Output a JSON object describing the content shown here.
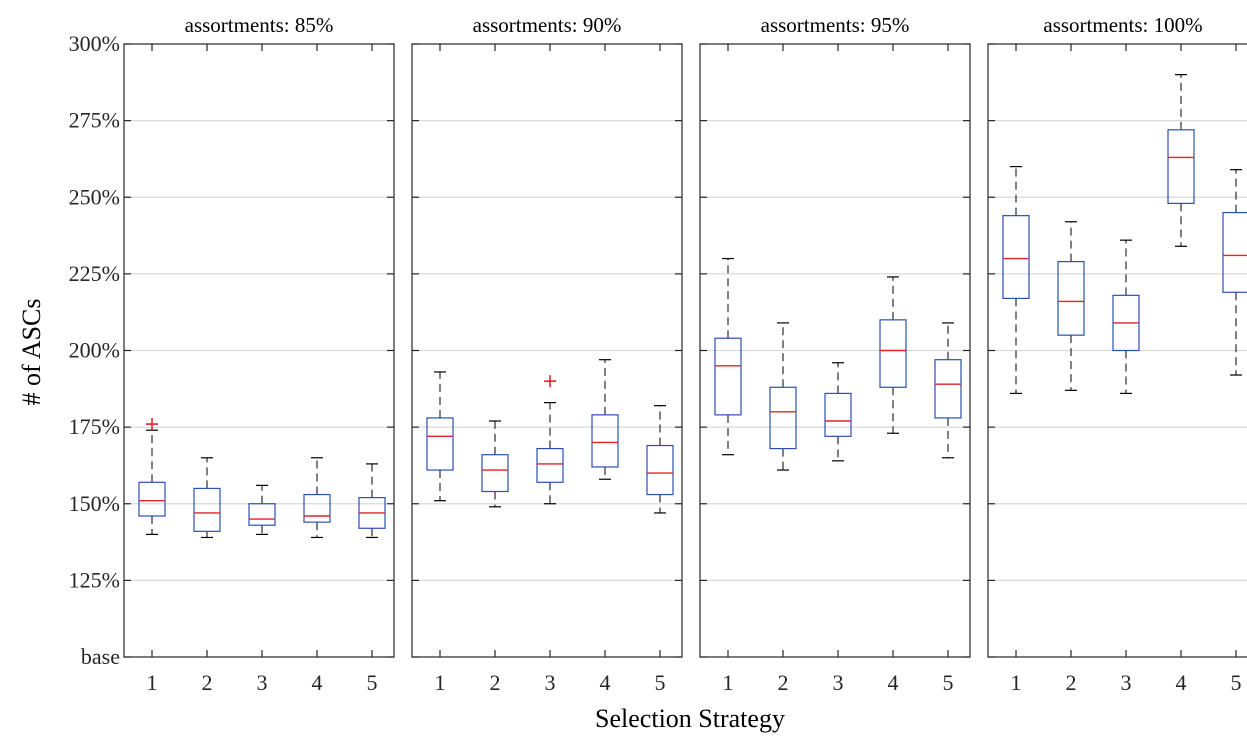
{
  "chart_data": {
    "type": "box",
    "xlabel": "Selection Strategy",
    "ylabel": "# of ASCs",
    "y_ticks": [
      {
        "value": 100,
        "label": "base"
      },
      {
        "value": 125,
        "label": "125%"
      },
      {
        "value": 150,
        "label": "150%"
      },
      {
        "value": 175,
        "label": "175%"
      },
      {
        "value": 200,
        "label": "200%"
      },
      {
        "value": 225,
        "label": "225%"
      },
      {
        "value": 250,
        "label": "250%"
      },
      {
        "value": 275,
        "label": "275%"
      },
      {
        "value": 300,
        "label": "300%"
      }
    ],
    "ylim": [
      100,
      300
    ],
    "grid": "horizontal",
    "colors": {
      "box": "#2a4fb5",
      "median": "#e0242c",
      "whisker": "#000000",
      "grid": "#d9d9d9",
      "outlier": "#e0242c"
    },
    "panels": [
      {
        "title": "assortments: 85%",
        "categories": [
          "1",
          "2",
          "3",
          "4",
          "5"
        ],
        "boxes": [
          {
            "min": 140,
            "q1": 146,
            "median": 151,
            "q3": 157,
            "max": 174,
            "outliers": [
              176
            ]
          },
          {
            "min": 139,
            "q1": 141,
            "median": 147,
            "q3": 155,
            "max": 165,
            "outliers": []
          },
          {
            "min": 140,
            "q1": 143,
            "median": 145,
            "q3": 150,
            "max": 156,
            "outliers": []
          },
          {
            "min": 139,
            "q1": 144,
            "median": 146,
            "q3": 153,
            "max": 165,
            "outliers": []
          },
          {
            "min": 139,
            "q1": 142,
            "median": 147,
            "q3": 152,
            "max": 163,
            "outliers": []
          }
        ]
      },
      {
        "title": "assortments: 90%",
        "categories": [
          "1",
          "2",
          "3",
          "4",
          "5"
        ],
        "boxes": [
          {
            "min": 151,
            "q1": 161,
            "median": 172,
            "q3": 178,
            "max": 193,
            "outliers": []
          },
          {
            "min": 149,
            "q1": 154,
            "median": 161,
            "q3": 166,
            "max": 177,
            "outliers": []
          },
          {
            "min": 150,
            "q1": 157,
            "median": 163,
            "q3": 168,
            "max": 183,
            "outliers": [
              190
            ]
          },
          {
            "min": 158,
            "q1": 162,
            "median": 170,
            "q3": 179,
            "max": 197,
            "outliers": []
          },
          {
            "min": 147,
            "q1": 153,
            "median": 160,
            "q3": 169,
            "max": 182,
            "outliers": []
          }
        ]
      },
      {
        "title": "assortments: 95%",
        "categories": [
          "1",
          "2",
          "3",
          "4",
          "5"
        ],
        "boxes": [
          {
            "min": 166,
            "q1": 179,
            "median": 195,
            "q3": 204,
            "max": 230,
            "outliers": []
          },
          {
            "min": 161,
            "q1": 168,
            "median": 180,
            "q3": 188,
            "max": 209,
            "outliers": []
          },
          {
            "min": 164,
            "q1": 172,
            "median": 177,
            "q3": 186,
            "max": 196,
            "outliers": []
          },
          {
            "min": 173,
            "q1": 188,
            "median": 200,
            "q3": 210,
            "max": 224,
            "outliers": []
          },
          {
            "min": 165,
            "q1": 178,
            "median": 189,
            "q3": 197,
            "max": 209,
            "outliers": []
          }
        ]
      },
      {
        "title": "assortments: 100%",
        "categories": [
          "1",
          "2",
          "3",
          "4",
          "5"
        ],
        "boxes": [
          {
            "min": 186,
            "q1": 217,
            "median": 230,
            "q3": 244,
            "max": 260,
            "outliers": []
          },
          {
            "min": 187,
            "q1": 205,
            "median": 216,
            "q3": 229,
            "max": 242,
            "outliers": []
          },
          {
            "min": 186,
            "q1": 200,
            "median": 209,
            "q3": 218,
            "max": 236,
            "outliers": []
          },
          {
            "min": 234,
            "q1": 248,
            "median": 263,
            "q3": 272,
            "max": 290,
            "outliers": []
          },
          {
            "min": 192,
            "q1": 219,
            "median": 231,
            "q3": 245,
            "max": 259,
            "outliers": []
          }
        ]
      }
    ]
  }
}
